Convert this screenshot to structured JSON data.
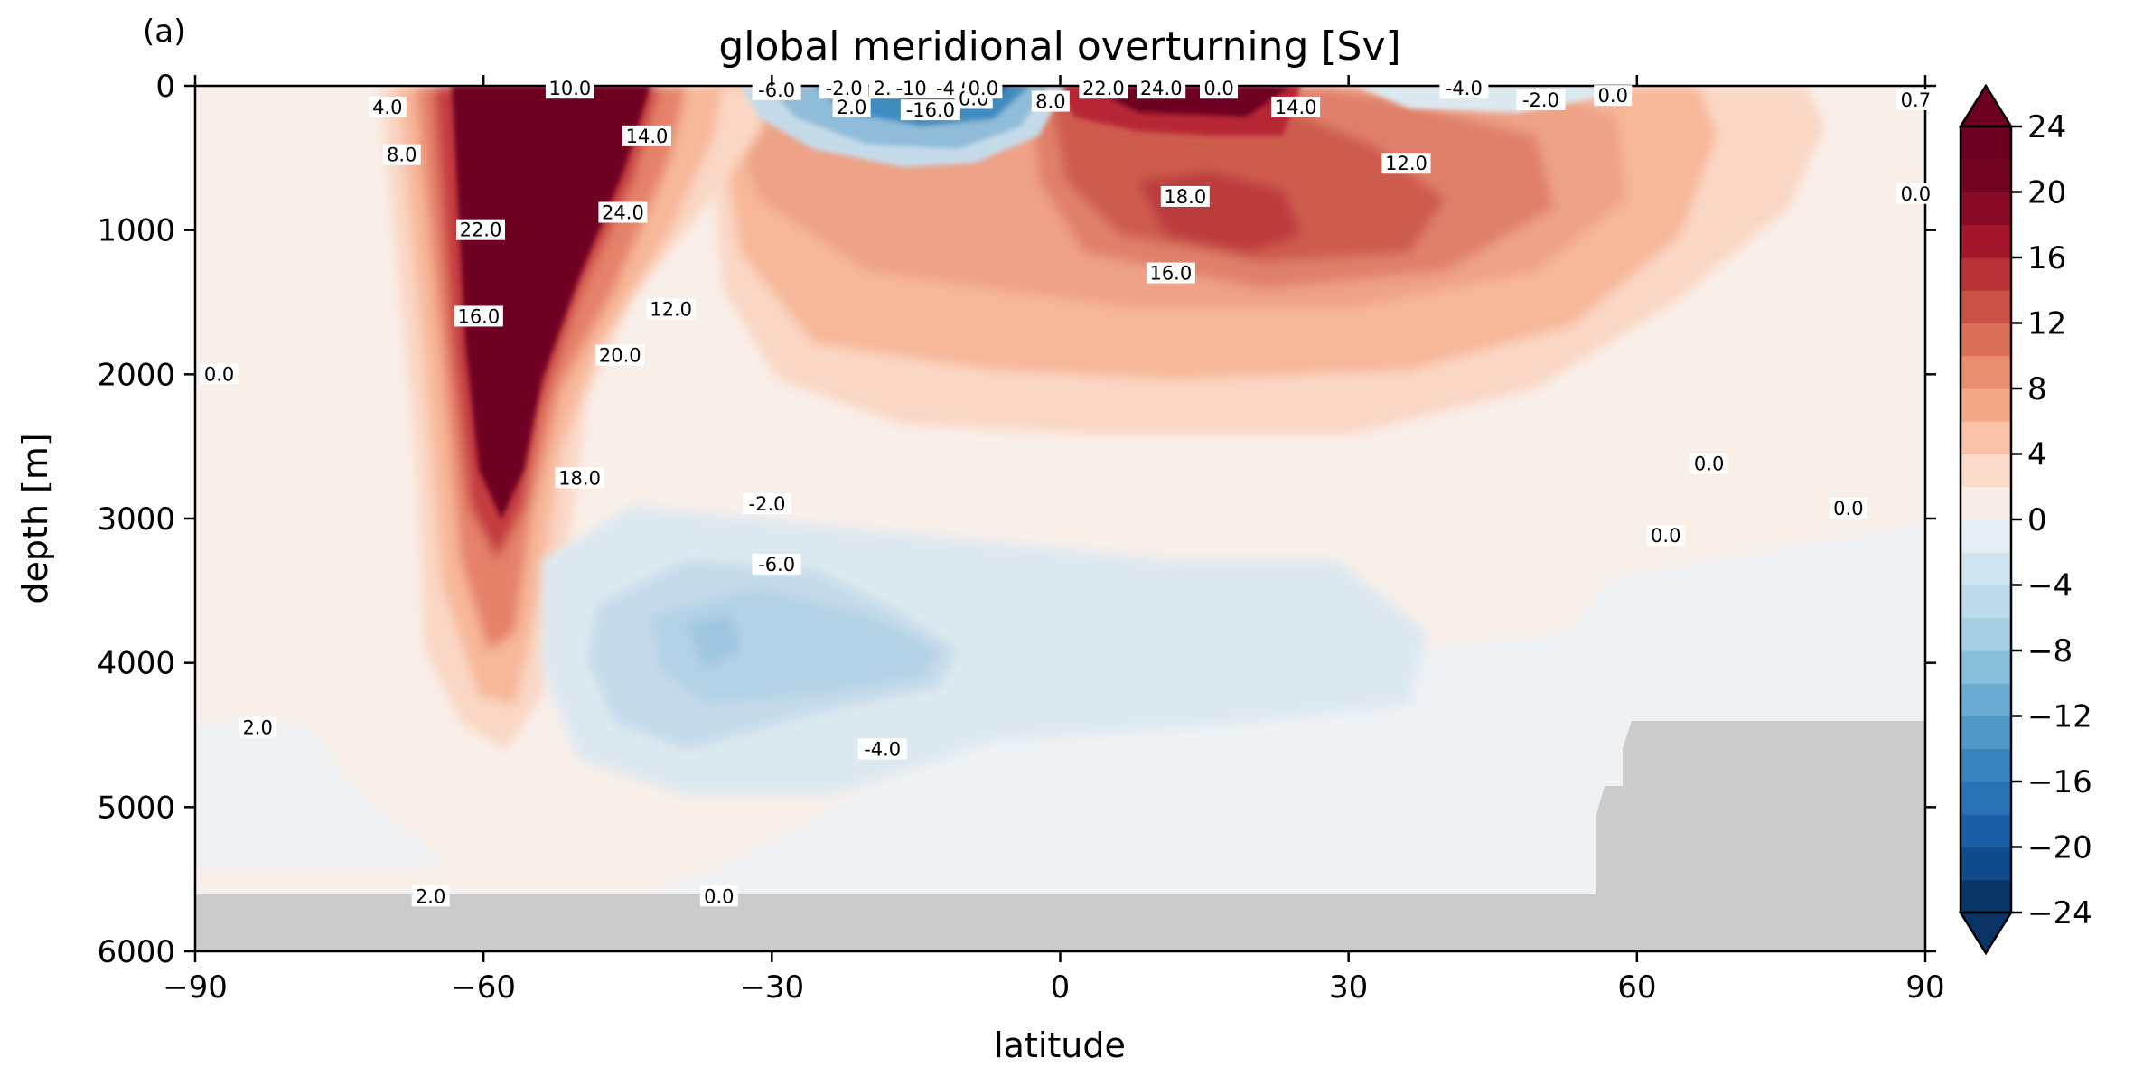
{
  "panel_label": "(a)",
  "chart_data": {
    "type": "heatmap",
    "title": "global meridional overturning [Sv]",
    "xlabel": "latitude",
    "ylabel": "depth [m]",
    "xlim": [
      -90,
      90
    ],
    "ylim": [
      6000,
      0
    ],
    "x_ticks": [
      "−90",
      "−60",
      "−30",
      "0",
      "30",
      "60",
      "90"
    ],
    "x_tick_values": [
      -90,
      -60,
      -30,
      0,
      30,
      60,
      90
    ],
    "y_ticks": [
      "0",
      "1000",
      "2000",
      "3000",
      "4000",
      "5000",
      "6000"
    ],
    "y_tick_values": [
      0,
      1000,
      2000,
      3000,
      4000,
      5000,
      6000
    ],
    "colorbar": {
      "ticks": [
        "24",
        "20",
        "16",
        "12",
        "8",
        "4",
        "0",
        "−4",
        "−8",
        "−12",
        "−16",
        "−20",
        "−24"
      ],
      "tick_values": [
        24,
        20,
        16,
        12,
        8,
        4,
        0,
        -4,
        -8,
        -12,
        -16,
        -20,
        -24
      ],
      "range": [
        -24,
        24
      ],
      "step": 2,
      "extend": "both",
      "colormap": "RdBu_r"
    },
    "features": [
      {
        "kind": "positive_cell",
        "lat": -57,
        "depth": 500,
        "peak": 24
      },
      {
        "kind": "positive_cell",
        "lat": 15,
        "depth": 900,
        "peak": 18
      },
      {
        "kind": "positive_cell",
        "lat": 10,
        "depth": 50,
        "peak": 24
      },
      {
        "kind": "negative_cell",
        "lat": -20,
        "depth": 100,
        "peak": -16
      },
      {
        "kind": "negative_cell",
        "lat": -35,
        "depth": 3800,
        "peak": -6
      },
      {
        "kind": "negative_cell",
        "lat": 42,
        "depth": 50,
        "peak": -4
      }
    ],
    "contour_labels": [
      {
        "text": "4.0",
        "lat": -70,
        "depth": 150
      },
      {
        "text": "8.0",
        "lat": -68.5,
        "depth": 480
      },
      {
        "text": "10.0",
        "lat": -51,
        "depth": 20
      },
      {
        "text": "22.0",
        "lat": -60.3,
        "depth": 1000
      },
      {
        "text": "16.0",
        "lat": -60.5,
        "depth": 1600
      },
      {
        "text": "24.0",
        "lat": -45.5,
        "depth": 880
      },
      {
        "text": "14.0",
        "lat": -43,
        "depth": 350
      },
      {
        "text": "12.0",
        "lat": -40.5,
        "depth": 1550
      },
      {
        "text": "20.0",
        "lat": -45.8,
        "depth": 1870
      },
      {
        "text": "18.0",
        "lat": -50,
        "depth": 2720
      },
      {
        "text": "0.0",
        "lat": -87.5,
        "depth": 2000
      },
      {
        "text": "-2.0",
        "lat": -30.5,
        "depth": 2900
      },
      {
        "text": "-6.0",
        "lat": -29.5,
        "depth": 3320
      },
      {
        "text": "-4.0",
        "lat": -18.5,
        "depth": 4600
      },
      {
        "text": "2.0",
        "lat": -83.5,
        "depth": 4450
      },
      {
        "text": "2.0",
        "lat": -65.5,
        "depth": 5620
      },
      {
        "text": "0.0",
        "lat": -35.5,
        "depth": 5620
      },
      {
        "text": "-6.0",
        "lat": -29.5,
        "depth": 30
      },
      {
        "text": "-2.0",
        "lat": -22.5,
        "depth": 20
      },
      {
        "text": "2.0",
        "lat": -21.7,
        "depth": 150
      },
      {
        "text": "2.",
        "lat": -18.5,
        "depth": 20
      },
      {
        "text": "-10",
        "lat": -15.5,
        "depth": 20
      },
      {
        "text": "-4.0",
        "lat": -11,
        "depth": 20
      },
      {
        "text": "-16.0",
        "lat": -13.5,
        "depth": 170
      },
      {
        "text": "0.0",
        "lat": -9,
        "depth": 90
      },
      {
        "text": "0.0",
        "lat": -8,
        "depth": 20
      },
      {
        "text": "8.0",
        "lat": -1,
        "depth": 110
      },
      {
        "text": "22.0",
        "lat": 4.5,
        "depth": 20
      },
      {
        "text": "24.0",
        "lat": 10.5,
        "depth": 20
      },
      {
        "text": "0.0",
        "lat": 16.5,
        "depth": 20
      },
      {
        "text": "14.0",
        "lat": 24.5,
        "depth": 150
      },
      {
        "text": "18.0",
        "lat": 13,
        "depth": 770
      },
      {
        "text": "16.0",
        "lat": 11.5,
        "depth": 1300
      },
      {
        "text": "12.0",
        "lat": 36,
        "depth": 540
      },
      {
        "text": "-4.0",
        "lat": 42,
        "depth": 20
      },
      {
        "text": "-2.0",
        "lat": 50,
        "depth": 100
      },
      {
        "text": "0.0",
        "lat": 57.5,
        "depth": 70
      },
      {
        "text": "0.0",
        "lat": 67.5,
        "depth": 2620
      },
      {
        "text": "0.0",
        "lat": 63,
        "depth": 3120
      },
      {
        "text": "0.0",
        "lat": 82,
        "depth": 2930
      },
      {
        "text": "0.0",
        "lat": 89,
        "depth": 750
      },
      {
        "text": "0.7",
        "lat": 89,
        "depth": 100
      }
    ]
  }
}
